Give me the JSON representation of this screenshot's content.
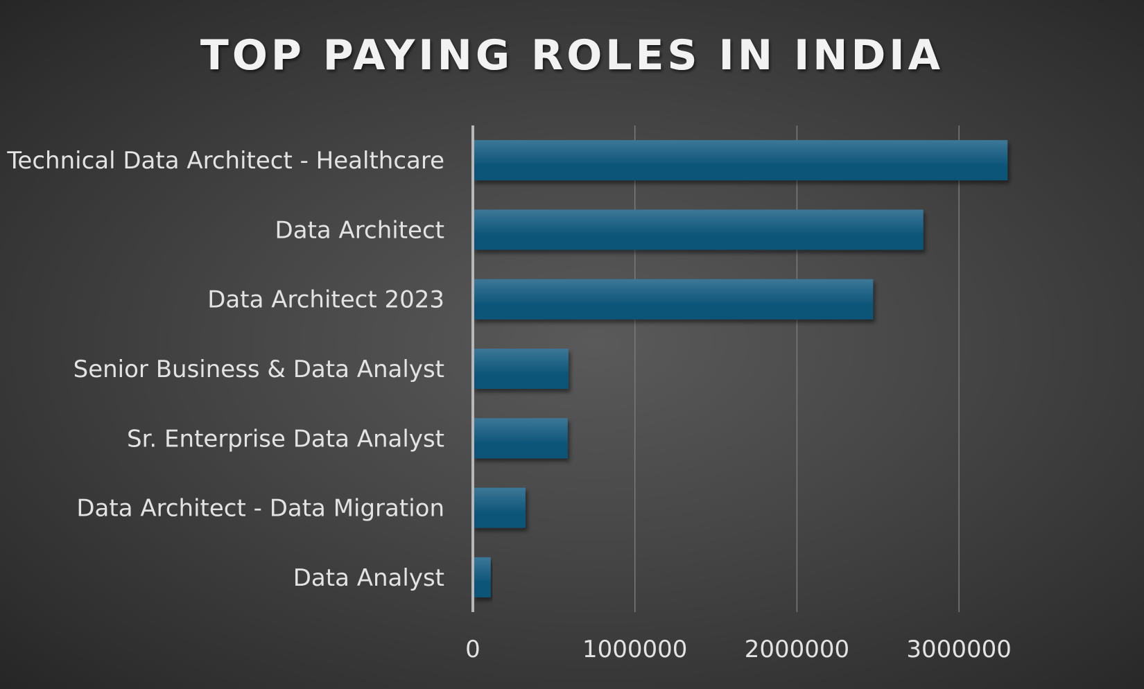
{
  "chart_data": {
    "type": "bar",
    "orientation": "horizontal",
    "title": "TOP PAYING ROLES IN INDIA",
    "xlabel": "",
    "ylabel": "",
    "categories": [
      "Technical Data Architect - Healthcare",
      "Data Architect",
      "Data Architect 2023",
      "Senior Business & Data Analyst",
      "Sr. Enterprise Data Analyst",
      "Data Architect - Data Migration",
      "Data Analyst"
    ],
    "values": [
      3300000,
      2780000,
      2470000,
      590000,
      585000,
      325000,
      110000
    ],
    "xlim": [
      0,
      3500000
    ],
    "xticks": [
      0,
      1000000,
      2000000,
      3000000
    ],
    "xtick_labels": [
      "0",
      "1000000",
      "2000000",
      "3000000"
    ],
    "grid": "vertical",
    "legend": "none",
    "colors": {
      "bar_top": "#3d7797",
      "bar_bottom": "#0b5478",
      "title": "#f2f2f2",
      "label": "#e3e3e3",
      "gridline": "#7a7a7a",
      "axis": "#b8b8b8"
    }
  }
}
